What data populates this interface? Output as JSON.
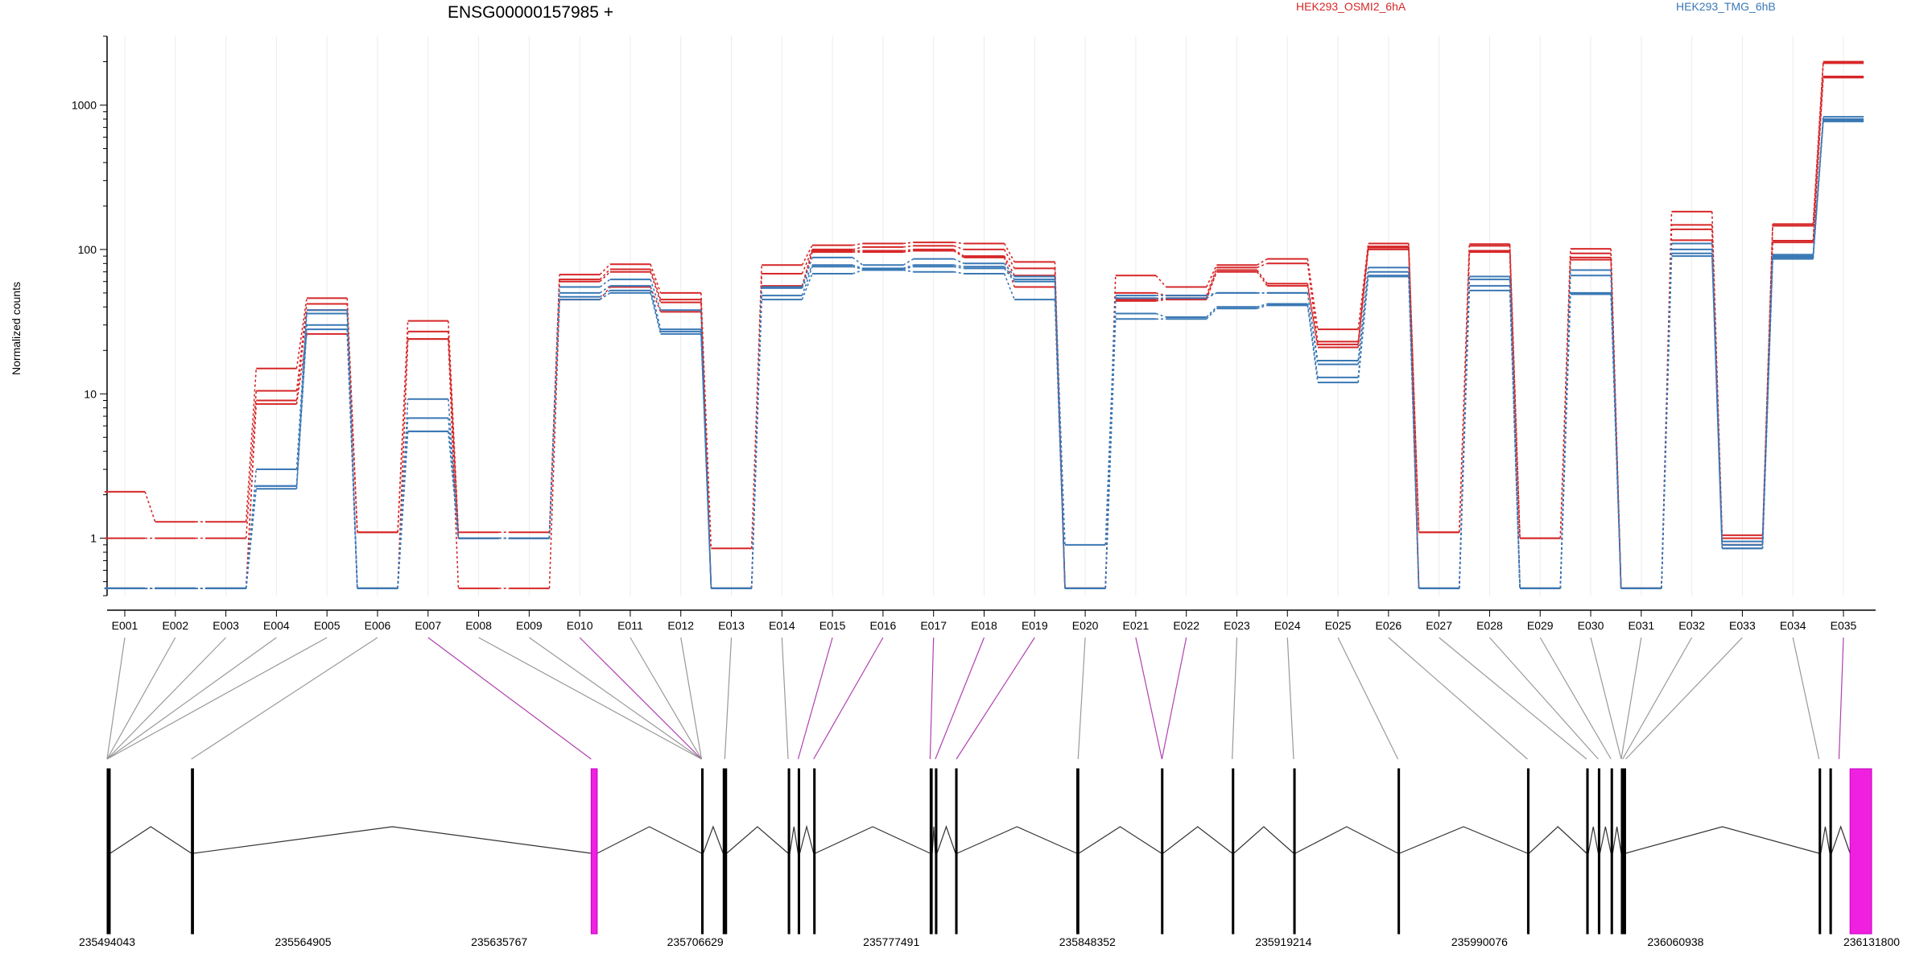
{
  "chart_data": {
    "type": "line",
    "title": "ENSG00000157985 +",
    "ylabel": "Normalized counts",
    "y_scale": "log",
    "ylim": [
      0.4,
      3000
    ],
    "yticks": [
      1,
      10,
      100,
      1000
    ],
    "ytick_labels": [
      "1",
      "10",
      "100",
      "1000"
    ],
    "grid": "vertical lines at each exon bin",
    "legend": [
      {
        "name": "HEK293_OSMI2_6hA",
        "color": "#d62728"
      },
      {
        "name": "HEK293_TMG_6hB",
        "color": "#3a78b5"
      }
    ],
    "categories": [
      "E001",
      "E002",
      "E003",
      "E004",
      "E005",
      "E006",
      "E007",
      "E008",
      "E009",
      "E010",
      "E011",
      "E012",
      "E013",
      "E014",
      "E015",
      "E016",
      "E017",
      "E018",
      "E019",
      "E020",
      "E021",
      "E022",
      "E023",
      "E024",
      "E025",
      "E026",
      "E027",
      "E028",
      "E029",
      "E030",
      "E031",
      "E032",
      "E033",
      "E034",
      "E035"
    ],
    "series": [
      {
        "group": "HEK293_OSMI2_6hA",
        "color": "#d62728",
        "values": [
          2.1,
          1.3,
          1.3,
          15,
          46,
          1.1,
          32,
          1.1,
          1.1,
          67,
          79,
          50,
          0.85,
          78,
          107,
          110,
          112,
          110,
          82,
          0.45,
          66,
          55,
          78,
          86,
          28,
          110,
          1.1,
          109,
          1.0,
          101,
          0.45,
          183,
          1.05,
          150,
          2000
        ]
      },
      {
        "group": "HEK293_OSMI2_6hA",
        "color": "#d62728",
        "values": [
          1.0,
          1.0,
          1.0,
          10.5,
          42,
          1.1,
          27,
          1.0,
          1.0,
          62,
          73,
          45,
          0.45,
          68,
          100,
          104,
          106,
          100,
          74,
          0.45,
          50,
          48,
          75,
          80,
          23,
          105,
          1.1,
          106,
          1.0,
          94,
          0.45,
          148,
          1.0,
          146,
          1950
        ]
      },
      {
        "group": "HEK293_OSMI2_6hA",
        "color": "#d62728",
        "values": [
          0.45,
          0.45,
          0.45,
          9.0,
          38,
          0.45,
          24,
          1.0,
          1.0,
          60,
          70,
          43,
          0.45,
          56,
          98,
          98,
          100,
          90,
          66,
          0.45,
          45,
          46,
          72,
          58,
          22,
          103,
          0.45,
          98,
          0.45,
          88,
          0.45,
          138,
          0.9,
          115,
          1580
        ]
      },
      {
        "group": "HEK293_OSMI2_6hA",
        "color": "#d62728",
        "values": [
          0.45,
          0.45,
          0.45,
          8.5,
          26,
          0.45,
          24,
          0.45,
          0.45,
          45,
          55,
          37,
          0.45,
          55,
          96,
          96,
          98,
          88,
          55,
          0.45,
          44,
          45,
          70,
          56,
          21,
          100,
          0.45,
          96,
          0.45,
          85,
          0.45,
          116,
          0.9,
          112,
          1550
        ]
      },
      {
        "group": "HEK293_TMG_6hB",
        "color": "#3a78b5",
        "values": [
          0.45,
          0.45,
          0.45,
          3.0,
          38,
          0.45,
          9.2,
          1.0,
          1.0,
          55,
          62,
          38,
          0.45,
          55,
          88,
          78,
          86,
          80,
          65,
          0.9,
          48,
          48,
          50,
          50,
          17,
          75,
          0.45,
          65,
          0.45,
          72,
          0.45,
          110,
          0.95,
          92,
          830
        ]
      },
      {
        "group": "HEK293_TMG_6hB",
        "color": "#3a78b5",
        "values": [
          0.45,
          0.45,
          0.45,
          2.3,
          36,
          0.45,
          6.8,
          1.0,
          1.0,
          50,
          56,
          28,
          0.45,
          54,
          78,
          74,
          78,
          76,
          62,
          0.45,
          46,
          46,
          50,
          50,
          16,
          70,
          0.45,
          62,
          0.45,
          66,
          0.45,
          100,
          0.9,
          90,
          800
        ]
      },
      {
        "group": "HEK293_TMG_6hB",
        "color": "#3a78b5",
        "values": [
          0.45,
          0.45,
          0.45,
          2.3,
          30,
          0.45,
          5.5,
          1.0,
          1.0,
          47,
          52,
          27,
          0.45,
          48,
          76,
          73,
          76,
          74,
          60,
          0.45,
          36,
          34,
          40,
          42,
          13,
          66,
          0.45,
          56,
          0.45,
          50,
          0.45,
          94,
          0.85,
          88,
          780
        ]
      },
      {
        "group": "HEK293_TMG_6hB",
        "color": "#3a78b5",
        "values": [
          0.45,
          0.45,
          0.45,
          2.2,
          28,
          0.45,
          5.5,
          1.0,
          1.0,
          45,
          50,
          26,
          0.45,
          45,
          68,
          72,
          70,
          68,
          45,
          0.45,
          33,
          33,
          39,
          41,
          12,
          65,
          0.45,
          52,
          0.45,
          49,
          0.45,
          90,
          0.85,
          86,
          770
        ]
      }
    ],
    "gene_track": {
      "genomic_range": [
        235494043,
        236131800
      ],
      "coordinate_labels": [
        "235494043",
        "235564905",
        "235635767",
        "235706629",
        "235777491",
        "235848352",
        "235919214",
        "235990076",
        "236060938",
        "236131800"
      ],
      "exons": [
        {
          "start": 235494043,
          "end": 235495200,
          "highlight": false
        },
        {
          "start": 235524500,
          "end": 235525300,
          "highlight": false
        },
        {
          "start": 235669000,
          "end": 235671200,
          "highlight": true
        },
        {
          "start": 235708900,
          "end": 235709500,
          "highlight": false
        },
        {
          "start": 235716700,
          "end": 235718000,
          "highlight": false
        },
        {
          "start": 235740200,
          "end": 235740800,
          "highlight": false
        },
        {
          "start": 235743800,
          "end": 235744400,
          "highlight": false
        },
        {
          "start": 235749400,
          "end": 235750000,
          "highlight": false
        },
        {
          "start": 235791500,
          "end": 235792300,
          "highlight": false
        },
        {
          "start": 235793400,
          "end": 235794000,
          "highlight": false
        },
        {
          "start": 235800700,
          "end": 235801300,
          "highlight": false
        },
        {
          "start": 235844500,
          "end": 235845300,
          "highlight": false
        },
        {
          "start": 235875100,
          "end": 235875700,
          "highlight": false
        },
        {
          "start": 235900700,
          "end": 235901300,
          "highlight": false
        },
        {
          "start": 235922900,
          "end": 235923500,
          "highlight": false
        },
        {
          "start": 235960600,
          "end": 235961200,
          "highlight": false
        },
        {
          "start": 236007400,
          "end": 236008000,
          "highlight": false
        },
        {
          "start": 236028800,
          "end": 236029400,
          "highlight": false
        },
        {
          "start": 236033000,
          "end": 236033600,
          "highlight": false
        },
        {
          "start": 236037600,
          "end": 236038200,
          "highlight": false
        },
        {
          "start": 236041300,
          "end": 236042900,
          "highlight": false
        },
        {
          "start": 236112800,
          "end": 236113400,
          "highlight": false
        },
        {
          "start": 236116700,
          "end": 236117300,
          "highlight": false
        },
        {
          "start": 236124000,
          "end": 236131800,
          "highlight": true
        }
      ],
      "bin_positions": [
        235494043,
        235494043,
        235494043,
        235494043,
        235494043,
        235524500,
        235669000,
        235708900,
        235708900,
        235708900,
        235708900,
        235708900,
        235717300,
        235740200,
        235743800,
        235749400,
        235791500,
        235793400,
        235801000,
        235845000,
        235875300,
        235875300,
        235900700,
        235922900,
        235960600,
        236007400,
        236028800,
        236033000,
        236037600,
        236041300,
        236041300,
        236041800,
        236042900,
        236112800,
        236120000
      ],
      "bin_highlight": [
        false,
        false,
        false,
        false,
        false,
        false,
        true,
        false,
        false,
        true,
        false,
        false,
        false,
        false,
        true,
        true,
        true,
        true,
        true,
        false,
        true,
        true,
        false,
        false,
        false,
        false,
        false,
        false,
        false,
        false,
        false,
        false,
        false,
        false,
        true
      ]
    }
  }
}
